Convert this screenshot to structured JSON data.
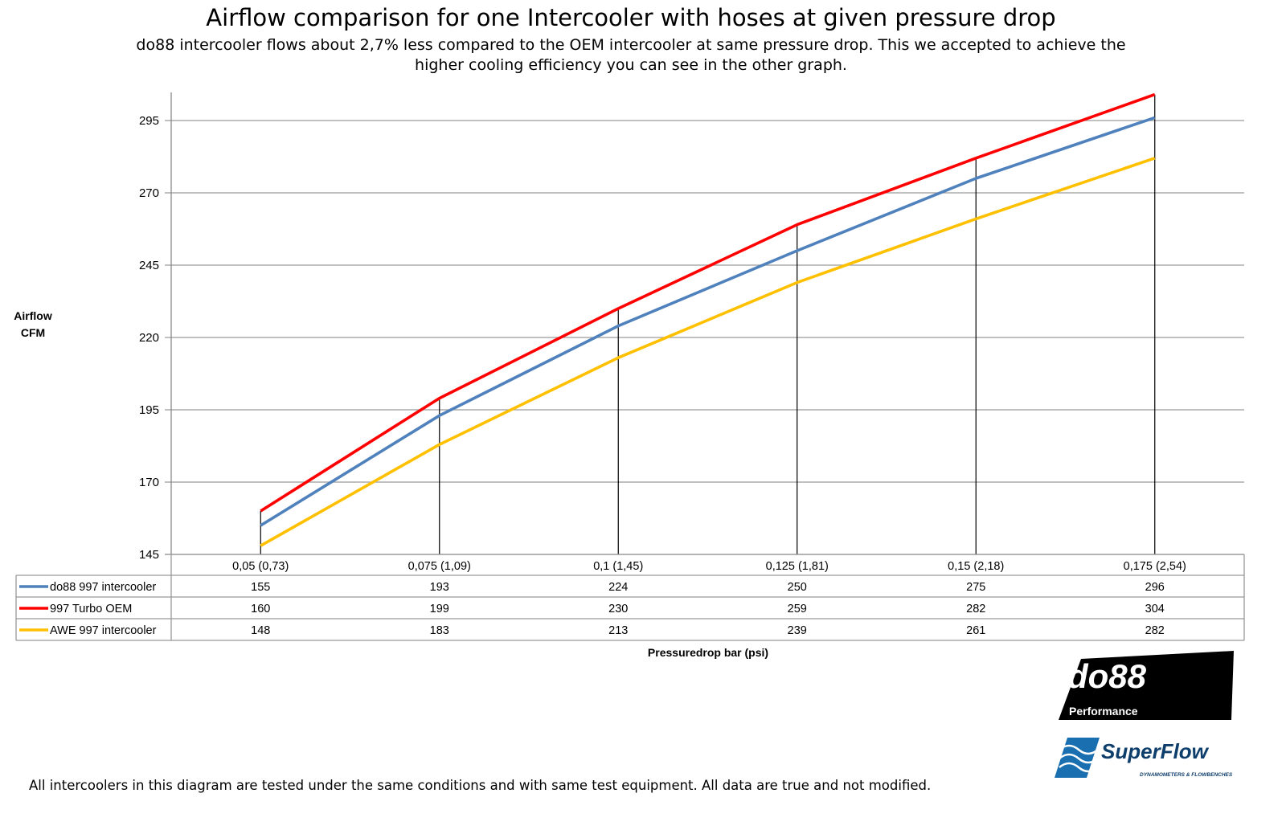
{
  "chart_data": {
    "type": "line",
    "title": "Airflow comparison for one Intercooler with hoses at given pressure drop",
    "subtitle": "do88 intercooler flows about 2,7% less compared to the OEM intercooler at same pressure drop. This we accepted to achieve the higher cooling efficiency you can see in the other graph.",
    "ylabel": [
      "Airflow",
      "CFM"
    ],
    "xlabel": "Pressuredrop bar (psi)",
    "ylim": [
      145,
      305
    ],
    "yticks": [
      145,
      170,
      195,
      220,
      245,
      270,
      295
    ],
    "grid": true,
    "legend": "data-table",
    "categories": [
      "0,05 (0,73)",
      "0,075 (1,09)",
      "0,1 (1,45)",
      "0,125 (1,81)",
      "0,15 (2,18)",
      "0,175 (2,54)"
    ],
    "series": [
      {
        "name": "do88 997 intercooler",
        "color": "#4f81bd",
        "values": [
          155,
          193,
          224,
          250,
          275,
          296
        ]
      },
      {
        "name": "997 Turbo OEM",
        "color": "#ff0000",
        "values": [
          160,
          199,
          230,
          259,
          282,
          304
        ]
      },
      {
        "name": "AWE 997 intercooler",
        "color": "#ffc000",
        "values": [
          148,
          183,
          213,
          239,
          261,
          282
        ]
      }
    ]
  },
  "footer": "All intercoolers in this diagram are tested under the same conditions and with same test equipment. All data are true and not modified.",
  "logos": {
    "do88": "do88",
    "do88_sub": "Performance",
    "superflow": "SuperFlow",
    "superflow_sub": "DYNAMOMETERS & FLOWBENCHES"
  }
}
